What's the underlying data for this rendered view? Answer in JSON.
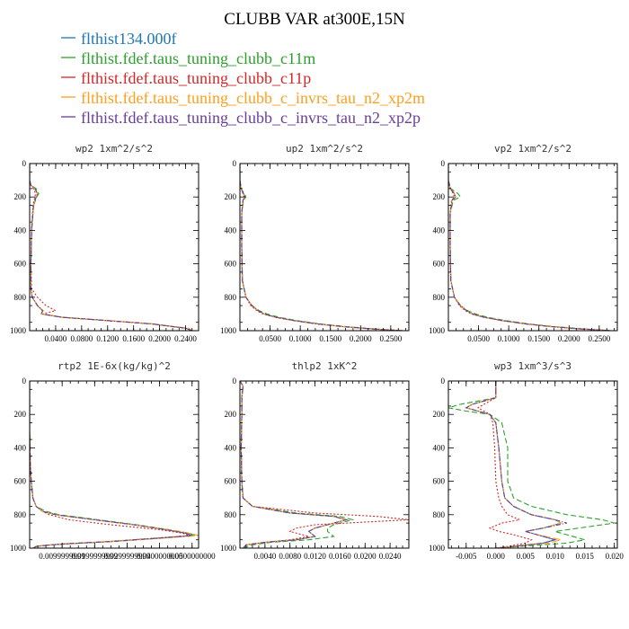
{
  "title": "CLUBB VAR at300E,15N",
  "legend": [
    {
      "label": "flthist134.000f",
      "color": "#1f77b4",
      "dash": "solid"
    },
    {
      "label": "flthist.fdef.taus_tuning_clubb_c11m",
      "color": "#2ca02c",
      "dash": "solid"
    },
    {
      "label": "flthist.fdef.taus_tuning_clubb_c11p",
      "color": "#d62728",
      "dash": "solid"
    },
    {
      "label": "flthist.fdef.taus_tuning_clubb_c_invrs_tau_n2_xp2m",
      "color": "#ff9f1c",
      "dash": "solid"
    },
    {
      "label": "flthist.fdef.taus_tuning_clubb_c_invrs_tau_n2_xp2p",
      "color": "#6a3d9a",
      "dash": "solid"
    }
  ],
  "chart_data": [
    {
      "type": "line",
      "title": "wp2  1xm^2/s^2",
      "xlim": [
        0,
        0.26
      ],
      "ylim": [
        1000,
        0
      ],
      "ylabel_ticks": [
        "0",
        "200",
        "400",
        "600",
        "800",
        "1000"
      ],
      "xticks": [
        0.04,
        0.08,
        0.12,
        0.16,
        0.2,
        0.24
      ],
      "xtick_labels": [
        "0.0400",
        "0.0800",
        "0.1200",
        "0.1600",
        "0.2000",
        "0.2400"
      ],
      "y": [
        0,
        100,
        130,
        150,
        180,
        200,
        250,
        400,
        600,
        750,
        800,
        850,
        880,
        900,
        920,
        940,
        960,
        975,
        985,
        1000
      ],
      "series": [
        {
          "values": [
            0,
            0,
            0.002,
            0.008,
            0.012,
            0.01,
            0.006,
            0.003,
            0.002,
            0.002,
            0.004,
            0.012,
            0.02,
            0.018,
            0.05,
            0.12,
            0.19,
            0.22,
            0.24,
            0.25
          ]
        },
        {
          "values": [
            0,
            0,
            0.002,
            0.01,
            0.014,
            0.011,
            0.006,
            0.003,
            0.002,
            0.002,
            0.004,
            0.012,
            0.02,
            0.018,
            0.05,
            0.12,
            0.19,
            0.22,
            0.24,
            0.25
          ]
        },
        {
          "values": [
            0,
            0,
            0.002,
            0.006,
            0.009,
            0.008,
            0.005,
            0.003,
            0.002,
            0.003,
            0.012,
            0.025,
            0.04,
            0.02,
            0.05,
            0.12,
            0.19,
            0.22,
            0.24,
            0.25
          ]
        },
        {
          "values": [
            0,
            0,
            0.002,
            0.008,
            0.012,
            0.01,
            0.006,
            0.003,
            0.002,
            0.002,
            0.004,
            0.012,
            0.021,
            0.018,
            0.05,
            0.12,
            0.19,
            0.22,
            0.245,
            0.25
          ]
        },
        {
          "values": [
            0,
            0,
            0.002,
            0.008,
            0.012,
            0.01,
            0.006,
            0.003,
            0.002,
            0.002,
            0.004,
            0.012,
            0.02,
            0.018,
            0.05,
            0.12,
            0.19,
            0.22,
            0.24,
            0.25
          ]
        }
      ]
    },
    {
      "type": "line",
      "title": "up2  1xm^2/s^2",
      "xlim": [
        0,
        0.28
      ],
      "ylim": [
        1000,
        0
      ],
      "ylabel_ticks": [
        "0",
        "200",
        "400",
        "600",
        "800",
        "1000"
      ],
      "xticks": [
        0.05,
        0.1,
        0.15,
        0.2,
        0.25
      ],
      "xtick_labels": [
        "0.0500",
        "0.1000",
        "0.1500",
        "0.2000",
        "0.2500"
      ],
      "y": [
        0,
        100,
        150,
        180,
        200,
        220,
        300,
        500,
        700,
        800,
        850,
        880,
        900,
        920,
        940,
        960,
        975,
        990,
        1000
      ],
      "series": [
        {
          "values": [
            0,
            0,
            0.002,
            0.006,
            0.008,
            0.005,
            0.003,
            0.003,
            0.004,
            0.01,
            0.02,
            0.03,
            0.04,
            0.06,
            0.09,
            0.13,
            0.17,
            0.22,
            0.27
          ]
        },
        {
          "values": [
            0,
            0,
            0.002,
            0.007,
            0.01,
            0.006,
            0.003,
            0.003,
            0.004,
            0.01,
            0.02,
            0.032,
            0.045,
            0.065,
            0.095,
            0.135,
            0.175,
            0.225,
            0.27
          ]
        },
        {
          "values": [
            0,
            0,
            0.002,
            0.005,
            0.007,
            0.005,
            0.003,
            0.003,
            0.004,
            0.01,
            0.018,
            0.028,
            0.038,
            0.058,
            0.088,
            0.128,
            0.168,
            0.218,
            0.27
          ]
        },
        {
          "values": [
            0,
            0,
            0.002,
            0.006,
            0.008,
            0.005,
            0.003,
            0.003,
            0.004,
            0.01,
            0.02,
            0.03,
            0.04,
            0.06,
            0.09,
            0.13,
            0.17,
            0.22,
            0.27
          ]
        },
        {
          "values": [
            0,
            0,
            0.002,
            0.006,
            0.008,
            0.005,
            0.003,
            0.003,
            0.004,
            0.01,
            0.02,
            0.03,
            0.04,
            0.06,
            0.09,
            0.13,
            0.17,
            0.22,
            0.27
          ]
        }
      ]
    },
    {
      "type": "line",
      "title": "vp2  1xm^2/s^2",
      "xlim": [
        0,
        0.28
      ],
      "ylim": [
        1000,
        0
      ],
      "ylabel_ticks": [
        "0",
        "200",
        "400",
        "600",
        "800",
        "1000"
      ],
      "xticks": [
        0.05,
        0.1,
        0.15,
        0.2,
        0.25
      ],
      "xtick_labels": [
        "0.0500",
        "0.1000",
        "0.1500",
        "0.2000",
        "0.2500"
      ],
      "y": [
        0,
        100,
        150,
        180,
        200,
        220,
        300,
        500,
        700,
        800,
        850,
        880,
        900,
        920,
        940,
        960,
        975,
        990,
        1000
      ],
      "series": [
        {
          "values": [
            0,
            0,
            0.003,
            0.01,
            0.012,
            0.006,
            0.003,
            0.003,
            0.004,
            0.01,
            0.02,
            0.03,
            0.04,
            0.06,
            0.09,
            0.13,
            0.17,
            0.22,
            0.27
          ]
        },
        {
          "values": [
            0,
            0,
            0.004,
            0.016,
            0.02,
            0.008,
            0.003,
            0.003,
            0.004,
            0.01,
            0.02,
            0.032,
            0.045,
            0.065,
            0.095,
            0.135,
            0.175,
            0.225,
            0.27
          ]
        },
        {
          "values": [
            0,
            0,
            0.003,
            0.008,
            0.01,
            0.005,
            0.003,
            0.003,
            0.004,
            0.01,
            0.018,
            0.028,
            0.038,
            0.058,
            0.088,
            0.128,
            0.168,
            0.218,
            0.27
          ]
        },
        {
          "values": [
            0,
            0,
            0.003,
            0.01,
            0.012,
            0.006,
            0.003,
            0.003,
            0.004,
            0.01,
            0.02,
            0.03,
            0.04,
            0.06,
            0.09,
            0.13,
            0.17,
            0.22,
            0.27
          ]
        },
        {
          "values": [
            0,
            0,
            0.003,
            0.01,
            0.012,
            0.006,
            0.003,
            0.003,
            0.004,
            0.01,
            0.02,
            0.03,
            0.04,
            0.06,
            0.09,
            0.13,
            0.17,
            0.22,
            0.27
          ]
        }
      ]
    },
    {
      "type": "line",
      "title": "rtp2  1E-6x(kg/kg)^2",
      "xlim": [
        0,
        0.052
      ],
      "ylim": [
        1000,
        0
      ],
      "ylabel_ticks": [
        "0",
        "200",
        "400",
        "600",
        "800",
        "1000"
      ],
      "xticks": [
        0.01,
        0.02,
        0.03,
        0.04,
        0.05
      ],
      "xtick_labels": [
        "0.0099999999",
        "0.0199999999",
        "0.0299999999",
        "0.0400000000",
        "0.0500000000"
      ],
      "y": [
        0,
        100,
        300,
        500,
        600,
        700,
        750,
        780,
        800,
        830,
        860,
        890,
        910,
        925,
        940,
        960,
        975,
        985,
        990,
        1000
      ],
      "series": [
        {
          "values": [
            0,
            0,
            0,
            0.0002,
            0.0005,
            0.001,
            0.002,
            0.004,
            0.008,
            0.02,
            0.032,
            0.042,
            0.048,
            0.05,
            0.04,
            0.025,
            0.01,
            0.004,
            0.002,
            0.001
          ]
        },
        {
          "values": [
            0,
            0,
            0,
            0.0002,
            0.0005,
            0.001,
            0.002,
            0.005,
            0.009,
            0.021,
            0.033,
            0.043,
            0.049,
            0.051,
            0.041,
            0.026,
            0.011,
            0.004,
            0.002,
            0.001
          ]
        },
        {
          "values": [
            0,
            0,
            0,
            0.0002,
            0.0005,
            0.001,
            0.002,
            0.004,
            0.006,
            0.012,
            0.025,
            0.04,
            0.047,
            0.049,
            0.039,
            0.024,
            0.01,
            0.004,
            0.002,
            0.001
          ]
        },
        {
          "values": [
            0,
            0,
            0,
            0.0002,
            0.0005,
            0.001,
            0.002,
            0.004,
            0.008,
            0.02,
            0.032,
            0.043,
            0.049,
            0.052,
            0.041,
            0.025,
            0.01,
            0.004,
            0.002,
            0.001
          ]
        },
        {
          "values": [
            0,
            0,
            0,
            0.0002,
            0.0005,
            0.001,
            0.002,
            0.004,
            0.008,
            0.02,
            0.032,
            0.042,
            0.048,
            0.05,
            0.04,
            0.025,
            0.01,
            0.004,
            0.002,
            0.001
          ]
        }
      ]
    },
    {
      "type": "line",
      "title": "thlp2  1xK^2",
      "xlim": [
        0,
        0.027
      ],
      "ylim": [
        1000,
        0
      ],
      "ylabel_ticks": [
        "0",
        "200",
        "400",
        "600",
        "800",
        "1000"
      ],
      "xticks": [
        0.004,
        0.008,
        0.012,
        0.016,
        0.02,
        0.024
      ],
      "xtick_labels": [
        "0.0040",
        "0.0080",
        "0.0120",
        "0.0160",
        "0.0200",
        "0.0240"
      ],
      "y": [
        0,
        30,
        100,
        200,
        400,
        600,
        700,
        750,
        790,
        810,
        830,
        860,
        880,
        900,
        930,
        950,
        965,
        980,
        1000
      ],
      "series": [
        {
          "values": [
            0,
            0.0005,
            0.0003,
            0.0003,
            0.0002,
            0.0003,
            0.0005,
            0.002,
            0.008,
            0.015,
            0.017,
            0.014,
            0.012,
            0.011,
            0.012,
            0.009,
            0.004,
            0.001,
            0.0005
          ]
        },
        {
          "values": [
            0,
            0.0005,
            0.0003,
            0.0003,
            0.0002,
            0.0003,
            0.0005,
            0.002,
            0.009,
            0.016,
            0.018,
            0.015,
            0.014,
            0.014,
            0.015,
            0.011,
            0.005,
            0.002,
            0.0005
          ]
        },
        {
          "values": [
            0,
            0.0005,
            0.0003,
            0.0003,
            0.0002,
            0.0003,
            0.0005,
            0.002,
            0.012,
            0.022,
            0.027,
            0.012,
            0.009,
            0.008,
            0.011,
            0.008,
            0.004,
            0.001,
            0.0005
          ]
        },
        {
          "values": [
            0,
            0.0005,
            0.0003,
            0.0003,
            0.0002,
            0.0003,
            0.0005,
            0.002,
            0.008,
            0.015,
            0.017,
            0.014,
            0.012,
            0.011,
            0.012,
            0.009,
            0.004,
            0.001,
            0.0005
          ]
        },
        {
          "values": [
            0,
            0.0005,
            0.0003,
            0.0003,
            0.0002,
            0.0003,
            0.0005,
            0.002,
            0.008,
            0.015,
            0.017,
            0.014,
            0.012,
            0.011,
            0.012,
            0.009,
            0.004,
            0.001,
            0.0005
          ]
        }
      ]
    },
    {
      "type": "line",
      "title": "wp3  1xm^3/s^3",
      "xlim": [
        -0.008,
        0.0205
      ],
      "ylim": [
        1000,
        0
      ],
      "ylabel_ticks": [
        "0",
        "200",
        "400",
        "600",
        "800",
        "1000"
      ],
      "xticks": [
        -0.005,
        0,
        0.005,
        0.01,
        0.015,
        0.02
      ],
      "xtick_labels": [
        "-0.005",
        "0.000",
        "0.005",
        "0.010",
        "0.015",
        "0.020"
      ],
      "y": [
        0,
        100,
        120,
        140,
        160,
        180,
        200,
        250,
        400,
        600,
        700,
        750,
        800,
        830,
        850,
        880,
        900,
        920,
        950,
        970,
        990,
        1000
      ],
      "series": [
        {
          "values": [
            0,
            0,
            -0.002,
            -0.004,
            -0.005,
            -0.003,
            -0.001,
            0,
            0.0005,
            0.001,
            0.0015,
            0.003,
            0.006,
            0.01,
            0.011,
            0.008,
            0.005,
            0.007,
            0.01,
            0.008,
            0.003,
            0
          ]
        },
        {
          "values": [
            0,
            0,
            -0.003,
            -0.006,
            -0.008,
            -0.005,
            -0.001,
            0.001,
            0.002,
            0.002,
            0.003,
            0.006,
            0.012,
            0.018,
            0.02,
            0.014,
            0.01,
            0.012,
            0.015,
            0.012,
            0.004,
            0
          ]
        },
        {
          "values": [
            0,
            0,
            -0.001,
            -0.002,
            -0.003,
            -0.002,
            -0.001,
            -0.0005,
            -0.0002,
            0,
            0.0005,
            0.001,
            0.002,
            0.004,
            0.001,
            -0.001,
            0.0005,
            0.003,
            0.006,
            0.005,
            0.002,
            0
          ]
        },
        {
          "values": [
            0,
            0,
            -0.002,
            -0.004,
            -0.005,
            -0.003,
            -0.001,
            0,
            0.0005,
            0.001,
            0.0015,
            0.003,
            0.006,
            0.01,
            0.011,
            0.008,
            0.005,
            0.007,
            0.011,
            0.009,
            0.003,
            0
          ]
        },
        {
          "values": [
            0,
            0,
            -0.002,
            -0.004,
            -0.005,
            -0.003,
            -0.001,
            0,
            0.0005,
            0.001,
            0.0015,
            0.003,
            0.006,
            0.01,
            0.012,
            0.008,
            0.005,
            0.007,
            0.01,
            0.008,
            0.003,
            0
          ]
        }
      ]
    }
  ]
}
